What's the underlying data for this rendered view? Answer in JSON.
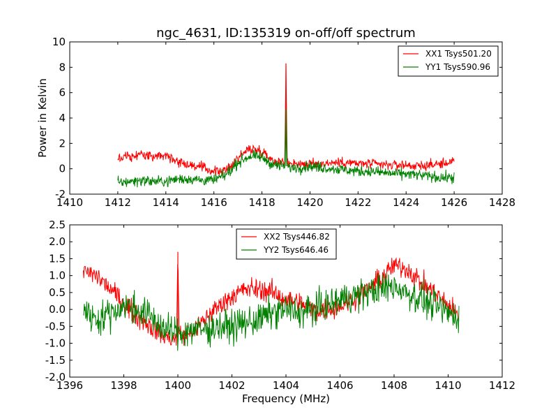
{
  "figure": {
    "background": "#ffffff"
  },
  "chart_data": [
    {
      "type": "line",
      "title": "ngc_4631, ID:135319 on-off/off spectrum",
      "xlabel": "",
      "ylabel": "Power in Kelvin",
      "xlim": [
        1410,
        1428
      ],
      "ylim": [
        -2,
        10
      ],
      "x_ticks": [
        1410,
        1412,
        1414,
        1416,
        1418,
        1420,
        1422,
        1424,
        1426,
        1428
      ],
      "y_ticks": [
        -2,
        0,
        2,
        4,
        6,
        8,
        10
      ],
      "grid": false,
      "legend_position": "top-right",
      "series": [
        {
          "name": "XX1 Tsys501.20",
          "color": "#ff0000",
          "x": [
            1412.0,
            1412.5,
            1413.0,
            1413.5,
            1414.0,
            1414.5,
            1415.0,
            1415.5,
            1416.0,
            1416.5,
            1417.0,
            1417.5,
            1418.0,
            1418.5,
            1418.95,
            1419.0,
            1419.05,
            1419.5,
            1420.0,
            1420.5,
            1421.0,
            1421.5,
            1422.0,
            1422.5,
            1423.0,
            1423.5,
            1424.0,
            1424.5,
            1425.0,
            1425.5,
            1426.0
          ],
          "y": [
            0.8,
            1.0,
            1.1,
            1.0,
            1.0,
            0.6,
            0.3,
            0.1,
            -0.2,
            -0.2,
            0.9,
            1.6,
            1.4,
            0.6,
            0.5,
            8.3,
            0.5,
            0.4,
            0.4,
            0.4,
            0.5,
            0.5,
            0.4,
            0.4,
            0.3,
            0.3,
            0.3,
            0.2,
            0.3,
            0.4,
            0.6
          ],
          "noise": 0.28
        },
        {
          "name": "YY1 Tsys590.96",
          "color": "#008000",
          "x": [
            1412.0,
            1412.5,
            1413.0,
            1413.5,
            1414.0,
            1414.5,
            1415.0,
            1415.5,
            1416.0,
            1416.5,
            1417.0,
            1417.5,
            1418.0,
            1418.5,
            1418.95,
            1419.0,
            1419.05,
            1419.5,
            1420.0,
            1420.5,
            1421.0,
            1421.5,
            1422.0,
            1422.5,
            1423.0,
            1423.5,
            1424.0,
            1424.5,
            1425.0,
            1425.5,
            1426.0
          ],
          "y": [
            -1.1,
            -1.0,
            -0.9,
            -1.0,
            -1.0,
            -0.8,
            -0.8,
            -0.9,
            -0.9,
            -0.5,
            0.5,
            1.0,
            0.9,
            0.3,
            0.2,
            4.7,
            0.1,
            0.1,
            0.2,
            0.1,
            0.0,
            -0.1,
            -0.2,
            -0.2,
            -0.3,
            -0.4,
            -0.4,
            -0.5,
            -0.6,
            -0.7,
            -0.7
          ],
          "noise": 0.3
        }
      ]
    },
    {
      "type": "line",
      "title": "",
      "xlabel": "Frequency (MHz)",
      "ylabel": "",
      "xlim": [
        1396,
        1412
      ],
      "ylim": [
        -2.0,
        2.5
      ],
      "x_ticks": [
        1396,
        1398,
        1400,
        1402,
        1404,
        1406,
        1408,
        1410,
        1412
      ],
      "y_ticks": [
        -2.0,
        -1.5,
        -1.0,
        -0.5,
        0.0,
        0.5,
        1.0,
        1.5,
        2.0,
        2.5
      ],
      "grid": false,
      "legend_position": "upper-center",
      "series": [
        {
          "name": "XX2 Tsys446.82",
          "color": "#ff0000",
          "x": [
            1396.5,
            1397.0,
            1397.5,
            1398.0,
            1398.5,
            1399.0,
            1399.5,
            1399.95,
            1400.0,
            1400.05,
            1400.5,
            1401.0,
            1401.5,
            1402.0,
            1402.5,
            1403.0,
            1403.5,
            1404.0,
            1404.5,
            1405.0,
            1405.5,
            1406.0,
            1406.5,
            1407.0,
            1407.5,
            1408.0,
            1408.5,
            1409.0,
            1409.5,
            1410.0,
            1410.4
          ],
          "y": [
            1.1,
            1.0,
            0.6,
            0.2,
            -0.2,
            -0.5,
            -0.8,
            -0.9,
            1.7,
            -0.8,
            -0.7,
            -0.3,
            0.1,
            0.4,
            0.6,
            0.6,
            0.5,
            0.3,
            0.2,
            0.0,
            0.0,
            0.1,
            0.3,
            0.6,
            0.9,
            1.3,
            1.2,
            0.8,
            0.5,
            0.1,
            -0.2
          ],
          "noise": 0.22
        },
        {
          "name": "YY2 Tsys646.46",
          "color": "#008000",
          "x": [
            1396.5,
            1397.0,
            1397.5,
            1398.0,
            1398.5,
            1399.0,
            1399.5,
            1400.0,
            1400.5,
            1401.0,
            1401.5,
            1402.0,
            1402.5,
            1403.0,
            1403.5,
            1404.0,
            1404.5,
            1405.0,
            1405.5,
            1406.0,
            1406.5,
            1407.0,
            1407.5,
            1408.0,
            1408.5,
            1409.0,
            1409.5,
            1410.0,
            1410.4
          ],
          "y": [
            0.0,
            -0.3,
            -0.1,
            0.1,
            0.0,
            -0.2,
            -0.6,
            -0.7,
            -0.6,
            -0.6,
            -0.5,
            -0.5,
            -0.4,
            -0.3,
            -0.1,
            0.0,
            -0.1,
            0.0,
            0.1,
            0.3,
            0.4,
            0.5,
            0.6,
            0.7,
            0.5,
            0.3,
            0.1,
            -0.1,
            -0.2
          ],
          "noise": 0.33
        }
      ]
    }
  ]
}
